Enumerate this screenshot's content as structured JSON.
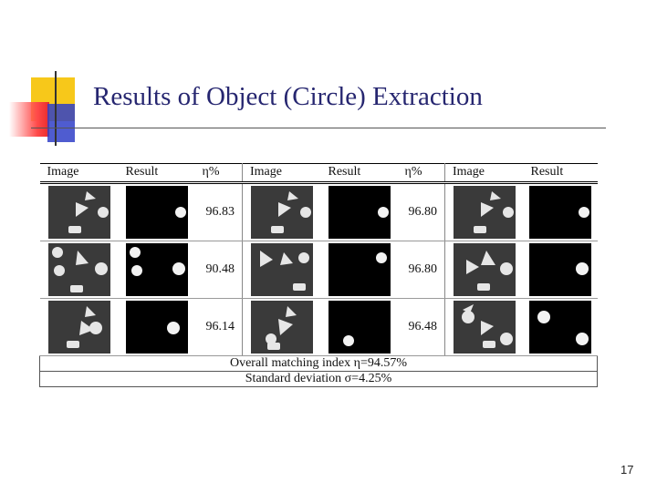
{
  "slide": {
    "title": "Results of Object (Circle) Extraction",
    "page_number": "17"
  },
  "table": {
    "headers": [
      "Image",
      "Result",
      "η%",
      "Image",
      "Result",
      "η%",
      "Image",
      "Result"
    ],
    "rows": [
      [
        "96.83",
        "96.80"
      ],
      [
        "90.48",
        "96.80"
      ],
      [
        "96.14",
        "96.48"
      ]
    ],
    "overall_matching_index": "Overall matching index η=94.57%",
    "standard_deviation": "Standard deviation σ=4.25%"
  },
  "colors": {
    "title": "#262670",
    "noise_bg": "#3a3a3a",
    "shape": "#e6e6e6",
    "result_bg": "#000000"
  }
}
